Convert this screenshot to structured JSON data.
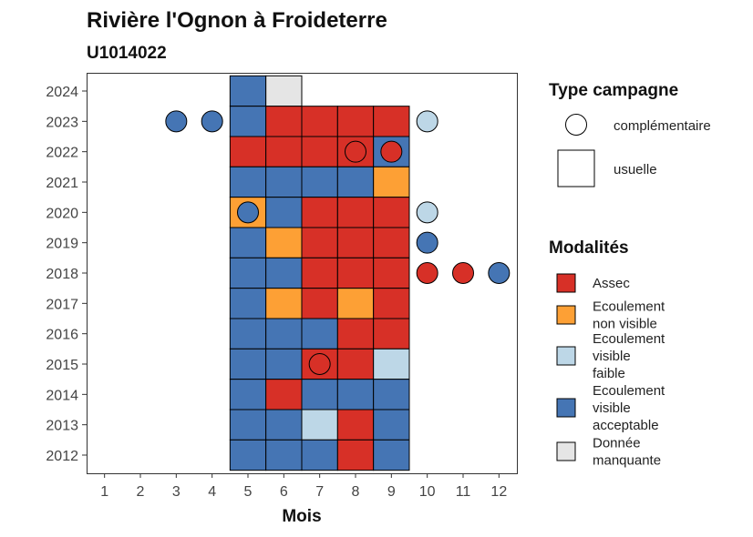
{
  "chart_data": {
    "type": "heatmap",
    "title": "Rivière l'Ognon à Froideterre",
    "subtitle": "U1014022",
    "xlabel": "Mois",
    "ylabel": "",
    "x_ticks": [
      "1",
      "2",
      "3",
      "4",
      "5",
      "6",
      "7",
      "8",
      "9",
      "10",
      "11",
      "12"
    ],
    "y_ticks": [
      "2012",
      "2013",
      "2014",
      "2015",
      "2016",
      "2017",
      "2018",
      "2019",
      "2020",
      "2021",
      "2022",
      "2023",
      "2024"
    ],
    "xlim": [
      0.5,
      12.5
    ],
    "ylim": [
      2011.4,
      2024.6
    ],
    "grid": false,
    "legend_position": "right",
    "shape_legend": {
      "title": "Type campagne",
      "items": [
        {
          "key": "complementaire",
          "label": "complémentaire",
          "shape": "circle"
        },
        {
          "key": "usuelle",
          "label": "usuelle",
          "shape": "square"
        }
      ]
    },
    "categories": [
      {
        "key": "assec",
        "lines": [
          "Assec"
        ],
        "color": "#D73027"
      },
      {
        "key": "nonvisible",
        "lines": [
          "Ecoulement",
          "non visible"
        ],
        "color": "#FDA035"
      },
      {
        "key": "faible",
        "lines": [
          "Ecoulement",
          "visible",
          "faible"
        ],
        "color": "#BDD7E7"
      },
      {
        "key": "acceptable",
        "lines": [
          "Ecoulement",
          "visible",
          "acceptable"
        ],
        "color": "#4575B4"
      },
      {
        "key": "manquante",
        "lines": [
          "Donnée",
          "manquante"
        ],
        "color": "#E5E5E5"
      }
    ],
    "usuelle": [
      {
        "year": 2024,
        "month": 5,
        "cat": "acceptable"
      },
      {
        "year": 2024,
        "month": 6,
        "cat": "manquante"
      },
      {
        "year": 2023,
        "month": 5,
        "cat": "acceptable"
      },
      {
        "year": 2023,
        "month": 6,
        "cat": "assec"
      },
      {
        "year": 2023,
        "month": 7,
        "cat": "assec"
      },
      {
        "year": 2023,
        "month": 8,
        "cat": "assec"
      },
      {
        "year": 2023,
        "month": 9,
        "cat": "assec"
      },
      {
        "year": 2022,
        "month": 5,
        "cat": "assec"
      },
      {
        "year": 2022,
        "month": 6,
        "cat": "assec"
      },
      {
        "year": 2022,
        "month": 7,
        "cat": "assec"
      },
      {
        "year": 2022,
        "month": 8,
        "cat": "assec"
      },
      {
        "year": 2022,
        "month": 9,
        "cat": "acceptable"
      },
      {
        "year": 2021,
        "month": 5,
        "cat": "acceptable"
      },
      {
        "year": 2021,
        "month": 6,
        "cat": "acceptable"
      },
      {
        "year": 2021,
        "month": 7,
        "cat": "acceptable"
      },
      {
        "year": 2021,
        "month": 8,
        "cat": "acceptable"
      },
      {
        "year": 2021,
        "month": 9,
        "cat": "nonvisible"
      },
      {
        "year": 2020,
        "month": 5,
        "cat": "nonvisible"
      },
      {
        "year": 2020,
        "month": 6,
        "cat": "acceptable"
      },
      {
        "year": 2020,
        "month": 7,
        "cat": "assec"
      },
      {
        "year": 2020,
        "month": 8,
        "cat": "assec"
      },
      {
        "year": 2020,
        "month": 9,
        "cat": "assec"
      },
      {
        "year": 2019,
        "month": 5,
        "cat": "acceptable"
      },
      {
        "year": 2019,
        "month": 6,
        "cat": "nonvisible"
      },
      {
        "year": 2019,
        "month": 7,
        "cat": "assec"
      },
      {
        "year": 2019,
        "month": 8,
        "cat": "assec"
      },
      {
        "year": 2019,
        "month": 9,
        "cat": "assec"
      },
      {
        "year": 2018,
        "month": 5,
        "cat": "acceptable"
      },
      {
        "year": 2018,
        "month": 6,
        "cat": "acceptable"
      },
      {
        "year": 2018,
        "month": 7,
        "cat": "assec"
      },
      {
        "year": 2018,
        "month": 8,
        "cat": "assec"
      },
      {
        "year": 2018,
        "month": 9,
        "cat": "assec"
      },
      {
        "year": 2017,
        "month": 5,
        "cat": "acceptable"
      },
      {
        "year": 2017,
        "month": 6,
        "cat": "nonvisible"
      },
      {
        "year": 2017,
        "month": 7,
        "cat": "assec"
      },
      {
        "year": 2017,
        "month": 8,
        "cat": "nonvisible"
      },
      {
        "year": 2017,
        "month": 9,
        "cat": "assec"
      },
      {
        "year": 2016,
        "month": 5,
        "cat": "acceptable"
      },
      {
        "year": 2016,
        "month": 6,
        "cat": "acceptable"
      },
      {
        "year": 2016,
        "month": 7,
        "cat": "acceptable"
      },
      {
        "year": 2016,
        "month": 8,
        "cat": "assec"
      },
      {
        "year": 2016,
        "month": 9,
        "cat": "assec"
      },
      {
        "year": 2015,
        "month": 5,
        "cat": "acceptable"
      },
      {
        "year": 2015,
        "month": 6,
        "cat": "acceptable"
      },
      {
        "year": 2015,
        "month": 7,
        "cat": "assec"
      },
      {
        "year": 2015,
        "month": 8,
        "cat": "assec"
      },
      {
        "year": 2015,
        "month": 9,
        "cat": "faible"
      },
      {
        "year": 2014,
        "month": 5,
        "cat": "acceptable"
      },
      {
        "year": 2014,
        "month": 6,
        "cat": "assec"
      },
      {
        "year": 2014,
        "month": 7,
        "cat": "acceptable"
      },
      {
        "year": 2014,
        "month": 8,
        "cat": "acceptable"
      },
      {
        "year": 2014,
        "month": 9,
        "cat": "acceptable"
      },
      {
        "year": 2013,
        "month": 5,
        "cat": "acceptable"
      },
      {
        "year": 2013,
        "month": 6,
        "cat": "acceptable"
      },
      {
        "year": 2013,
        "month": 7,
        "cat": "faible"
      },
      {
        "year": 2013,
        "month": 8,
        "cat": "assec"
      },
      {
        "year": 2013,
        "month": 9,
        "cat": "acceptable"
      },
      {
        "year": 2012,
        "month": 5,
        "cat": "acceptable"
      },
      {
        "year": 2012,
        "month": 6,
        "cat": "acceptable"
      },
      {
        "year": 2012,
        "month": 7,
        "cat": "acceptable"
      },
      {
        "year": 2012,
        "month": 8,
        "cat": "assec"
      },
      {
        "year": 2012,
        "month": 9,
        "cat": "acceptable"
      }
    ],
    "complementaire": [
      {
        "year": 2023,
        "month": 3,
        "cat": "acceptable"
      },
      {
        "year": 2023,
        "month": 4,
        "cat": "acceptable"
      },
      {
        "year": 2023,
        "month": 10,
        "cat": "faible"
      },
      {
        "year": 2022,
        "month": 8,
        "cat": "assec"
      },
      {
        "year": 2022,
        "month": 9,
        "cat": "assec"
      },
      {
        "year": 2020,
        "month": 5,
        "cat": "acceptable"
      },
      {
        "year": 2020,
        "month": 10,
        "cat": "faible"
      },
      {
        "year": 2019,
        "month": 10,
        "cat": "acceptable"
      },
      {
        "year": 2018,
        "month": 10,
        "cat": "assec"
      },
      {
        "year": 2018,
        "month": 11,
        "cat": "assec"
      },
      {
        "year": 2018,
        "month": 12,
        "cat": "acceptable"
      },
      {
        "year": 2015,
        "month": 7,
        "cat": "assec"
      }
    ]
  }
}
